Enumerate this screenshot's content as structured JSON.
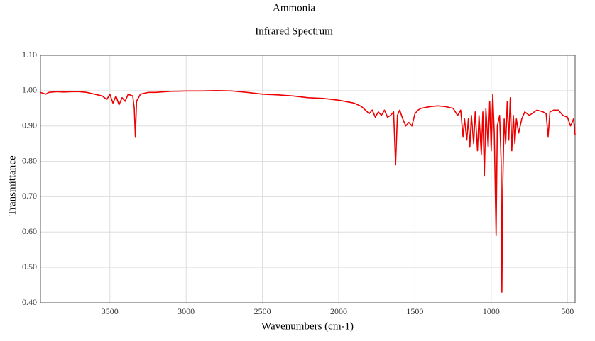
{
  "chart_data": {
    "type": "line",
    "title": "Ammonia",
    "subtitle": "Infrared Spectrum",
    "x_label": "Wavenumbers (cm-1)",
    "y_label": "Transmittance",
    "xlim": [
      3955,
      450
    ],
    "ylim": [
      0.4,
      1.1
    ],
    "xticks": [
      3500,
      3000,
      2500,
      2000,
      1500,
      1000,
      500
    ],
    "yticks": [
      {
        "value": 0.4,
        "label": "0.40"
      },
      {
        "value": 0.5,
        "label": "0.50"
      },
      {
        "value": 0.6,
        "label": "0.60"
      },
      {
        "value": 0.7,
        "label": "0.70"
      },
      {
        "value": 0.8,
        "label": "0.80"
      },
      {
        "value": 0.9,
        "label": "0.90"
      },
      {
        "value": 1.0,
        "label": "1.00"
      },
      {
        "value": 1.1,
        "label": "1.10"
      }
    ],
    "grid": true,
    "series": [
      {
        "color": "#ee0000",
        "x": [
          3955,
          3920,
          3900,
          3850,
          3800,
          3750,
          3700,
          3650,
          3600,
          3550,
          3520,
          3500,
          3480,
          3460,
          3440,
          3420,
          3400,
          3380,
          3350,
          3340,
          3333,
          3325,
          3300,
          3250,
          3200,
          3100,
          3000,
          2900,
          2800,
          2700,
          2600,
          2500,
          2400,
          2300,
          2200,
          2100,
          2000,
          1900,
          1850,
          1800,
          1780,
          1760,
          1740,
          1720,
          1700,
          1680,
          1660,
          1640,
          1627,
          1615,
          1600,
          1580,
          1560,
          1540,
          1520,
          1500,
          1480,
          1460,
          1400,
          1350,
          1300,
          1250,
          1220,
          1200,
          1185,
          1175,
          1160,
          1150,
          1140,
          1130,
          1115,
          1105,
          1090,
          1080,
          1065,
          1055,
          1045,
          1035,
          1020,
          1010,
          1000,
          990,
          980,
          968,
          960,
          945,
          935,
          930,
          925,
          915,
          905,
          895,
          885,
          875,
          865,
          855,
          845,
          835,
          820,
          800,
          780,
          750,
          700,
          660,
          640,
          627,
          615,
          590,
          560,
          530,
          500,
          480,
          460,
          450
        ],
        "values": [
          0.995,
          0.99,
          0.995,
          0.997,
          0.996,
          0.997,
          0.997,
          0.995,
          0.99,
          0.985,
          0.975,
          0.99,
          0.965,
          0.985,
          0.96,
          0.98,
          0.97,
          0.99,
          0.985,
          0.95,
          0.87,
          0.97,
          0.99,
          0.995,
          0.995,
          0.998,
          0.999,
          0.999,
          1.0,
          0.999,
          0.995,
          0.99,
          0.988,
          0.985,
          0.98,
          0.978,
          0.973,
          0.965,
          0.955,
          0.935,
          0.945,
          0.925,
          0.94,
          0.93,
          0.945,
          0.925,
          0.93,
          0.94,
          0.79,
          0.93,
          0.945,
          0.92,
          0.9,
          0.91,
          0.9,
          0.935,
          0.945,
          0.95,
          0.955,
          0.957,
          0.955,
          0.95,
          0.93,
          0.945,
          0.87,
          0.92,
          0.86,
          0.92,
          0.84,
          0.93,
          0.85,
          0.94,
          0.83,
          0.93,
          0.82,
          0.94,
          0.76,
          0.95,
          0.84,
          0.97,
          0.83,
          0.99,
          0.88,
          0.59,
          0.9,
          0.93,
          0.8,
          0.43,
          0.72,
          0.92,
          0.85,
          0.97,
          0.86,
          0.98,
          0.83,
          0.93,
          0.85,
          0.92,
          0.88,
          0.92,
          0.94,
          0.93,
          0.945,
          0.94,
          0.935,
          0.87,
          0.94,
          0.945,
          0.945,
          0.93,
          0.925,
          0.9,
          0.92,
          0.875
        ]
      }
    ]
  }
}
